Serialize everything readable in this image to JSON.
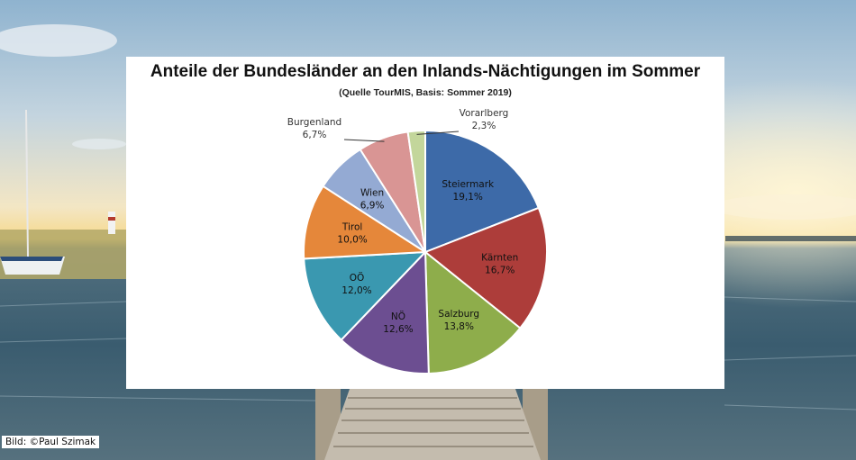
{
  "chart_data": {
    "type": "pie",
    "title": "Anteile der Bundesländer an den Inlands-Nächtigungen im Sommer",
    "subtitle": "(Quelle TourMIS,  Basis: Sommer 2019)",
    "slices": [
      {
        "name": "Steiermark",
        "value": 19.1,
        "label": "19,1%",
        "color": "#3d6aa8"
      },
      {
        "name": "Kärnten",
        "value": 16.7,
        "label": "16,7%",
        "color": "#ad3d3a"
      },
      {
        "name": "Salzburg",
        "value": 13.8,
        "label": "13,8%",
        "color": "#8ead4b"
      },
      {
        "name": "NÖ",
        "value": 12.6,
        "label": "12,6%",
        "color": "#6c4e91"
      },
      {
        "name": "OÖ",
        "value": 12.0,
        "label": "12,0%",
        "color": "#3a98b0"
      },
      {
        "name": "Tirol",
        "value": 10.0,
        "label": "10,0%",
        "color": "#e5873a"
      },
      {
        "name": "Wien",
        "value": 6.9,
        "label": "6,9%",
        "color": "#94aad3"
      },
      {
        "name": "Burgenland",
        "value": 6.7,
        "label": "6,7%",
        "color": "#d99594"
      },
      {
        "name": "Vorarlberg",
        "value": 2.3,
        "label": "2,3%",
        "color": "#c3d69b"
      }
    ]
  },
  "photo_credit": "Bild: ©Paul Szimak"
}
